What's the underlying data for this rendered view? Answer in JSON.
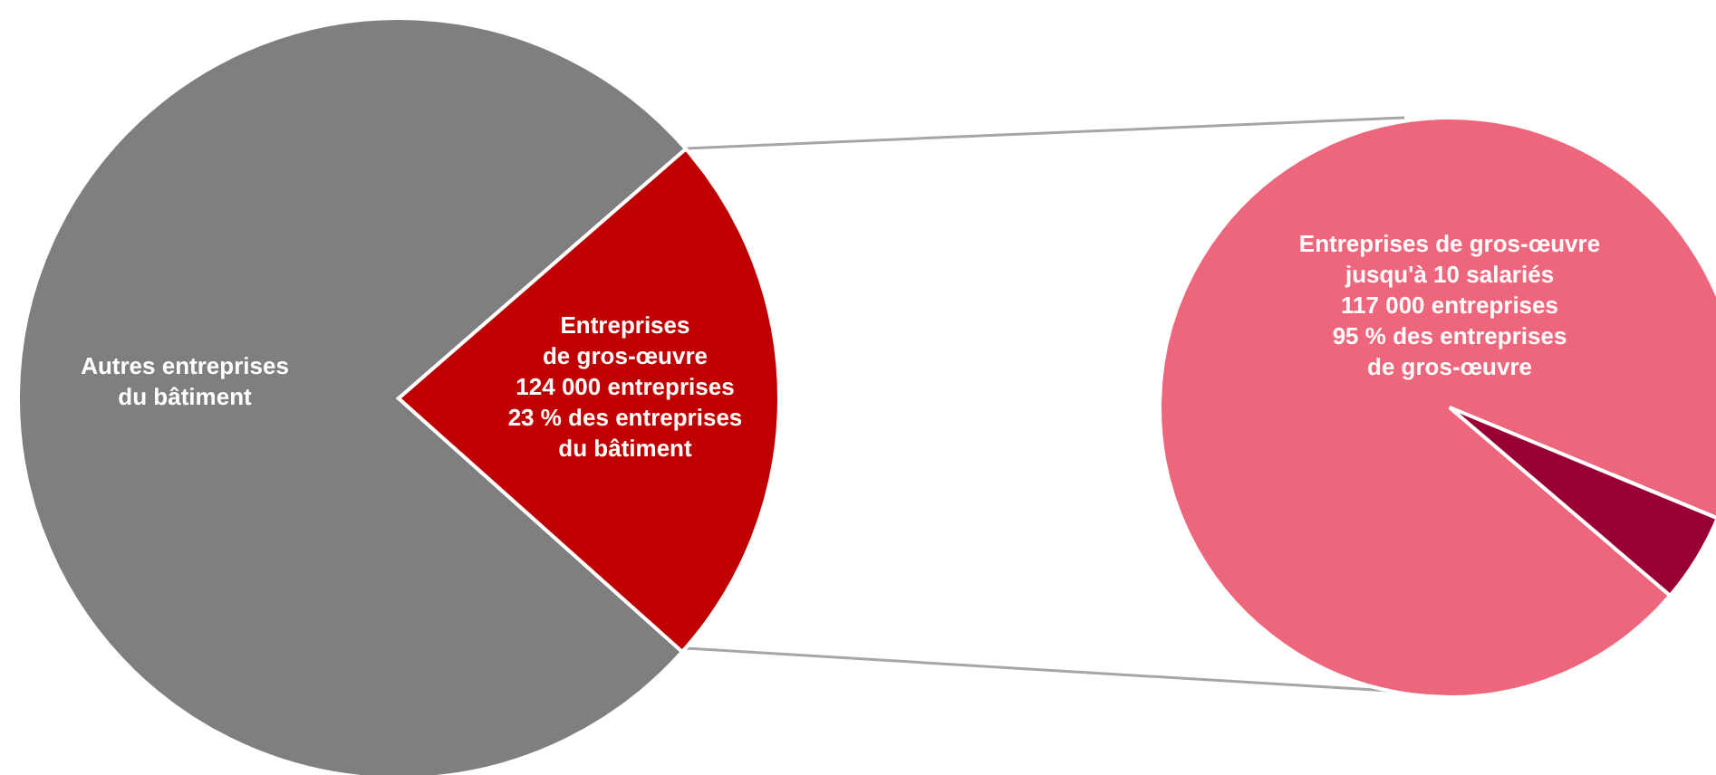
{
  "chart_data": [
    {
      "type": "pie",
      "categories": [
        "Autres entreprises\ndu bâtiment",
        "Entreprises\nde gros-œuvre"
      ],
      "values": [
        77,
        23
      ],
      "colors": [
        "#7f7f7f",
        "#c00000"
      ],
      "value_labels": [
        null,
        "124 000 entreprises\n23 % des entreprises\ndu bâtiment"
      ]
    },
    {
      "type": "pie",
      "categories": [
        "Entreprises de gros-œuvre\njusqu'à 10 salariés",
        null
      ],
      "values": [
        95,
        5
      ],
      "colors": [
        "#ee667b",
        "#990033"
      ],
      "value_labels": [
        "117 000  entreprises\n95 % des entreprises\nde gros-œuvre",
        null
      ]
    }
  ]
}
